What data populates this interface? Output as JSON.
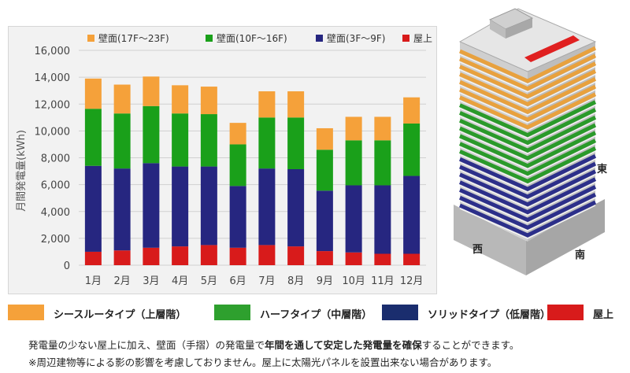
{
  "chart_data": {
    "type": "bar",
    "stacked": true,
    "categories": [
      "1月",
      "2月",
      "3月",
      "4月",
      "5月",
      "6月",
      "7月",
      "8月",
      "9月",
      "10月",
      "11月",
      "12月"
    ],
    "series": [
      {
        "name": "屋上",
        "color": "#d81b1b",
        "values": [
          1000,
          1100,
          1300,
          1400,
          1500,
          1300,
          1500,
          1400,
          1050,
          950,
          850,
          850
        ]
      },
      {
        "name": "壁面(3F～9F)",
        "color": "#262680",
        "values": [
          6400,
          6100,
          6300,
          5950,
          5850,
          4600,
          5700,
          5750,
          4500,
          5000,
          5100,
          5800
        ]
      },
      {
        "name": "壁面(10F～16F)",
        "color": "#1aa01a",
        "values": [
          4250,
          4100,
          4250,
          3950,
          3900,
          3100,
          3800,
          3850,
          3050,
          3350,
          3350,
          3900
        ]
      },
      {
        "name": "壁面(17F～23F)",
        "color": "#f5a13a",
        "values": [
          2250,
          2150,
          2200,
          2100,
          2050,
          1600,
          1950,
          1950,
          1600,
          1750,
          1750,
          1950
        ]
      }
    ],
    "legend_order": [
      "壁面(17F～23F)",
      "壁面(10F～16F)",
      "壁面(3F～9F)",
      "屋上"
    ],
    "ylabel": "月間発電量(kWh)",
    "ylim": [
      0,
      16000
    ],
    "yticks": [
      "0",
      "2,000",
      "4,000",
      "6,000",
      "8,000",
      "10,000",
      "12,000",
      "14,000",
      "16,000"
    ],
    "grid": true,
    "legend_position": "top"
  },
  "building": {
    "label_east": "東",
    "label_west": "西",
    "label_south": "南",
    "colors": {
      "orange": "#e8a13e",
      "green": "#2a9a2a",
      "navy": "#2c2f8a",
      "roof_panel": "#e02020",
      "base": "#c8c8c8"
    }
  },
  "key_legend": [
    {
      "label": "シースルータイプ（上層階）",
      "color": "#f5a13a"
    },
    {
      "label": "ハーフタイプ（中層階）",
      "color": "#2ea02e"
    },
    {
      "label": "ソリッドタイプ（低層階）",
      "color": "#1a2d6e"
    },
    {
      "label": "屋上",
      "color": "#d81b1b"
    }
  ],
  "notes": {
    "line1_a": "発電量の少ない屋上に加え、壁面（手摺）の発電量で",
    "line1_b": "年間を通して安定した発電量を確保",
    "line1_c": "することができます。",
    "line2": "※周辺建物等による影の影響を考慮しておりません。屋上に太陽光パネルを設置出来ない場合があります。"
  }
}
